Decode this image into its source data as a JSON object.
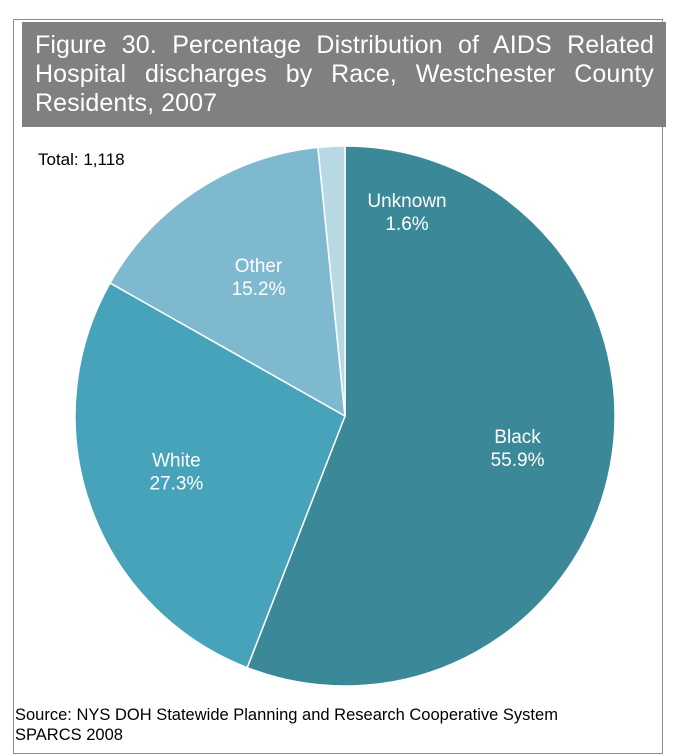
{
  "title": "Figure 30. Percentage Distribution of AIDS Related Hospital discharges by Race, Westchester County Residents, 2007",
  "total_label": "Total: 1,118",
  "source_line1": "Source: NYS DOH Statewide Planning and Research Cooperative System",
  "source_line2": "SPARCS 2008",
  "chart_data": {
    "type": "pie",
    "title": "Figure 30. Percentage Distribution of AIDS Related Hospital discharges by Race, Westchester County Residents, 2007",
    "slices": [
      {
        "name": "Black",
        "value": 55.9,
        "label": "55.9%",
        "color": "#3b8898"
      },
      {
        "name": "White",
        "value": 27.3,
        "label": "27.3%",
        "color": "#47a3b9"
      },
      {
        "name": "Other",
        "value": 15.2,
        "label": "15.2%",
        "color": "#7fb9cf"
      },
      {
        "name": "Unknown",
        "value": 1.6,
        "label": "1.6%",
        "color": "#b8d8e3"
      }
    ],
    "start_angle": "12 o'clock",
    "direction": "clockwise"
  }
}
